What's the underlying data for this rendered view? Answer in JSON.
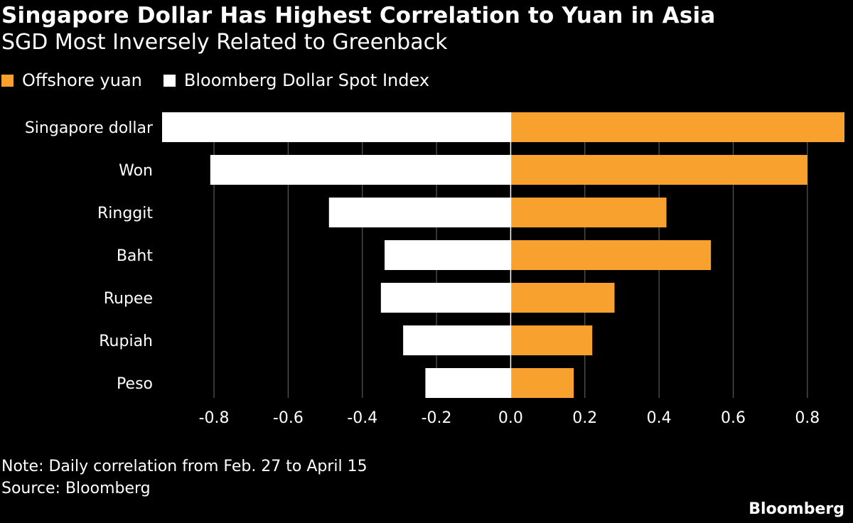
{
  "header": {
    "title": "Singapore Dollar Has Highest Correlation to Yuan in Asia",
    "subtitle": "SGD Most Inversely Related to Greenback"
  },
  "legend": [
    {
      "label": "Offshore yuan",
      "color": "#f8a12f"
    },
    {
      "label": "Bloomberg Dollar Spot Index",
      "color": "#ffffff"
    }
  ],
  "footer": {
    "note": "Note: Daily correlation from Feb. 27 to April 15",
    "source": "Source: Bloomberg",
    "brand": "Bloomberg"
  },
  "chart_data": {
    "type": "bar",
    "orientation": "horizontal",
    "title": "Singapore Dollar Has Highest Correlation to Yuan in Asia",
    "subtitle": "SGD Most Inversely Related to Greenback",
    "categories": [
      "Singapore dollar",
      "Won",
      "Ringgit",
      "Baht",
      "Rupee",
      "Rupiah",
      "Peso"
    ],
    "series": [
      {
        "name": "Offshore yuan",
        "color": "#f8a12f",
        "values": [
          0.9,
          0.8,
          0.42,
          0.54,
          0.28,
          0.22,
          0.17
        ]
      },
      {
        "name": "Bloomberg Dollar Spot Index",
        "color": "#ffffff",
        "values": [
          -0.94,
          -0.81,
          -0.49,
          -0.34,
          -0.35,
          -0.29,
          -0.23
        ]
      }
    ],
    "xlim": [
      -0.94,
      0.9
    ],
    "xticks": [
      -0.8,
      -0.6,
      -0.4,
      -0.2,
      0.0,
      0.2,
      0.4,
      0.6,
      0.8
    ],
    "xtick_labels": [
      "-0.8",
      "-0.6",
      "-0.4",
      "-0.2",
      "0.0",
      "0.2",
      "0.4",
      "0.6",
      "0.8"
    ],
    "grid": true,
    "legend_position": "top-left"
  }
}
